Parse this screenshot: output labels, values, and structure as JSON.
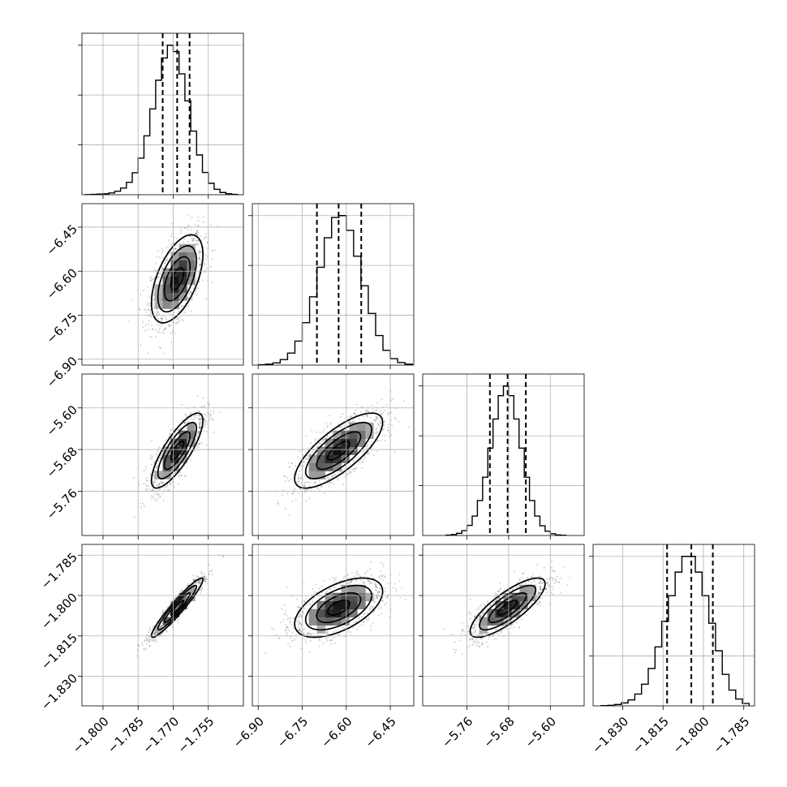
{
  "chart_data": {
    "type": "corner",
    "grid": true,
    "parameters": [
      {
        "index": 0,
        "range": [
          -1.809,
          -1.74
        ],
        "ticks": [
          -1.8,
          -1.785,
          -1.77,
          -1.755
        ],
        "tick_labels": [
          "−1.800",
          "−1.785",
          "−1.770",
          "−1.755"
        ],
        "quantiles": [
          -1.7745,
          -1.7683,
          -1.763
        ],
        "mean": -1.7683,
        "sd": 0.0055
      },
      {
        "index": 1,
        "range": [
          -6.92,
          -6.37
        ],
        "ticks": [
          -6.9,
          -6.75,
          -6.6,
          -6.45
        ],
        "tick_labels": [
          "−6.90",
          "−6.75",
          "−6.60",
          "−6.45"
        ],
        "quantiles": [
          -6.7,
          -6.626,
          -6.549
        ],
        "mean": -6.626,
        "sd": 0.075
      },
      {
        "index": 2,
        "range": [
          -5.845,
          -5.535
        ],
        "ticks": [
          -5.76,
          -5.68,
          -5.6
        ],
        "tick_labels": [
          "−5.76",
          "−5.68",
          "−5.60"
        ],
        "quantiles": [
          -5.716,
          -5.682,
          -5.647
        ],
        "mean": -5.682,
        "sd": 0.036
      },
      {
        "index": 3,
        "range": [
          -1.841,
          -1.781
        ],
        "ticks": [
          -1.83,
          -1.815,
          -1.8,
          -1.785
        ],
        "tick_labels": [
          "−1.830",
          "−1.815",
          "−1.800",
          "−1.785"
        ],
        "quantiles": [
          -1.8135,
          -1.8045,
          -1.7965
        ],
        "mean": -1.8045,
        "sd": 0.0055
      }
    ],
    "histograms": [
      {
        "param": 0,
        "bins": [
          -1.8075,
          -1.805,
          -1.8025,
          -1.8,
          -1.7975,
          -1.795,
          -1.7925,
          -1.79,
          -1.7875,
          -1.785,
          -1.7825,
          -1.78,
          -1.7775,
          -1.775,
          -1.7725,
          -1.77,
          -1.7675,
          -1.765,
          -1.7625,
          -1.76,
          -1.7575,
          -1.755,
          -1.7525,
          -1.75,
          -1.7475,
          -1.745,
          -1.7425
        ],
        "counts": [
          1,
          2,
          4,
          6,
          11,
          22,
          42,
          78,
          138,
          230,
          370,
          540,
          720,
          860,
          940,
          900,
          760,
          590,
          400,
          250,
          140,
          72,
          34,
          14,
          6,
          2
        ]
      },
      {
        "param": 1,
        "bins": [
          -6.9,
          -6.875,
          -6.85,
          -6.825,
          -6.8,
          -6.775,
          -6.75,
          -6.725,
          -6.7,
          -6.675,
          -6.65,
          -6.625,
          -6.6,
          -6.575,
          -6.55,
          -6.525,
          -6.5,
          -6.475,
          -6.45,
          -6.425,
          -6.4,
          -6.375
        ],
        "counts": [
          2,
          5,
          12,
          30,
          65,
          130,
          230,
          370,
          530,
          690,
          800,
          810,
          730,
          590,
          430,
          280,
          160,
          80,
          35,
          14,
          5
        ]
      },
      {
        "param": 2,
        "bins": [
          -5.8,
          -5.79,
          -5.78,
          -5.77,
          -5.76,
          -5.75,
          -5.74,
          -5.73,
          -5.72,
          -5.71,
          -5.7,
          -5.69,
          -5.68,
          -5.67,
          -5.66,
          -5.65,
          -5.64,
          -5.63,
          -5.62,
          -5.61,
          -5.6,
          -5.59,
          -5.58,
          -5.57
        ],
        "counts": [
          2,
          5,
          11,
          25,
          52,
          100,
          180,
          300,
          450,
          600,
          720,
          770,
          720,
          600,
          450,
          300,
          180,
          100,
          50,
          22,
          9,
          3,
          1
        ]
      },
      {
        "param": 3,
        "bins": [
          -1.838,
          -1.8355,
          -1.833,
          -1.8305,
          -1.828,
          -1.8255,
          -1.823,
          -1.8205,
          -1.818,
          -1.8155,
          -1.813,
          -1.8105,
          -1.808,
          -1.8055,
          -1.803,
          -1.8005,
          -1.798,
          -1.7955,
          -1.793,
          -1.7905,
          -1.788,
          -1.7855,
          -1.783
        ],
        "counts": [
          1,
          3,
          7,
          15,
          30,
          60,
          110,
          190,
          300,
          430,
          560,
          680,
          760,
          760,
          680,
          560,
          420,
          280,
          160,
          80,
          35,
          12
        ]
      }
    ],
    "pairs": [
      {
        "row": 1,
        "col": 0,
        "center": [
          -1.7683,
          -6.626
        ],
        "correlation": 0.55
      },
      {
        "row": 2,
        "col": 0,
        "center": [
          -1.7683,
          -5.682
        ],
        "correlation": 0.8
      },
      {
        "row": 2,
        "col": 1,
        "center": [
          -6.626,
          -5.682
        ],
        "correlation": 0.75
      },
      {
        "row": 3,
        "col": 0,
        "center": [
          -1.7683,
          -1.8045
        ],
        "correlation": 0.95
      },
      {
        "row": 3,
        "col": 1,
        "center": [
          -6.626,
          -1.8045
        ],
        "correlation": 0.55
      },
      {
        "row": 3,
        "col": 2,
        "center": [
          -5.682,
          -1.8045
        ],
        "correlation": 0.8
      }
    ],
    "contour_levels_sigma": [
      0.5,
      1.0,
      1.5,
      2.0
    ],
    "colors": {
      "line": "#000000",
      "grid": "#b0b0b0",
      "scatter": "#000000",
      "density": "#000000"
    }
  }
}
